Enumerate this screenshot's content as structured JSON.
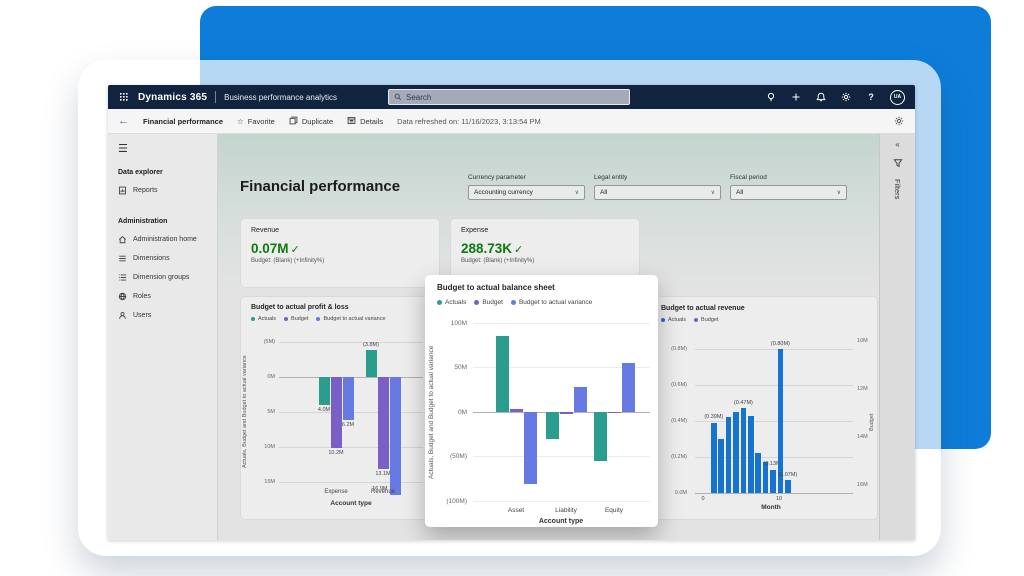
{
  "topbar": {
    "app_name": "Dynamics 365",
    "product_name": "Business performance analytics",
    "search_placeholder": "Search",
    "avatar_initials": "UA",
    "icons": [
      "lightbulb-icon",
      "add-icon",
      "bell-icon",
      "gear-icon",
      "help-icon"
    ]
  },
  "toolbar": {
    "title": "Financial performance",
    "favorite_label": "Favorite",
    "duplicate_label": "Duplicate",
    "details_label": "Details",
    "refreshed_label": "Data refreshed on: 11/16/2023, 3:13:54 PM"
  },
  "sidebar": {
    "sections": [
      {
        "heading": "Data explorer",
        "items": [
          {
            "label": "Reports",
            "icon": "report-icon"
          }
        ]
      },
      {
        "heading": "Administration",
        "items": [
          {
            "label": "Administration home",
            "icon": "home-icon"
          },
          {
            "label": "Dimensions",
            "icon": "dimensions-icon"
          },
          {
            "label": "Dimension groups",
            "icon": "dimension-groups-icon"
          },
          {
            "label": "Roles",
            "icon": "roles-icon"
          },
          {
            "label": "Users",
            "icon": "users-icon"
          }
        ]
      }
    ]
  },
  "page": {
    "title": "Financial performance"
  },
  "filters_bar": {
    "fields": [
      {
        "label": "Currency parameter",
        "value": "Accounting currency"
      },
      {
        "label": "Legal entity",
        "value": "All"
      },
      {
        "label": "Fiscal period",
        "value": "All"
      }
    ]
  },
  "kpis": [
    {
      "title": "Revenue",
      "value": "0.07M",
      "check": "✓",
      "subtitle": "Budget: (Blank) (+Infinity%)"
    },
    {
      "title": "Expense",
      "value": "288.73K",
      "check": "✓",
      "subtitle": "Budget: (Blank) (+Infinity%)"
    }
  ],
  "filters_panel": {
    "label": "Filters",
    "collapse_glyph": "«"
  },
  "colors": {
    "accent_blue_panel": "#0d7dd9",
    "topbar_navy": "#10233f",
    "kpi_green": "#0c7a0c",
    "actuals_teal": "#2a9d8f",
    "budget_purple": "#7a5fc7",
    "variance_periwinkle": "#6779e3",
    "actuals_blue": "#1673d2"
  },
  "chart_data": [
    {
      "id": "pl",
      "type": "bar",
      "title": "Budget to actual profit & loss",
      "categories": [
        "Expense",
        "Revenue"
      ],
      "series": [
        {
          "name": "Actuals",
          "color": "#2a9d8f",
          "values": [
            4.0,
            -3.8
          ],
          "labels": [
            "4.0M",
            "(3.8M)"
          ]
        },
        {
          "name": "Budget",
          "color": "#7a5fc7",
          "values": [
            10.2,
            13.1
          ],
          "labels": [
            "10.2M",
            "13.1M"
          ]
        },
        {
          "name": "Budget to actual variance",
          "color": "#6779e3",
          "values": [
            6.2,
            16.9
          ],
          "labels": [
            "6.2M",
            "16.9M"
          ]
        }
      ],
      "unit": "M",
      "axis_inverted": true,
      "yticks": [
        "(5M)",
        "0M",
        "5M",
        "10M",
        "15M"
      ],
      "xlabel": "Account type",
      "ylabel": "Actuals, Budget and Budget to actual variance",
      "legend_position": "top"
    },
    {
      "id": "bs",
      "type": "bar",
      "title": "Budget to actual balance sheet",
      "categories": [
        "Asset",
        "Liability",
        "Equity"
      ],
      "series": [
        {
          "name": "Actuals",
          "color": "#2a9d8f",
          "values": [
            85,
            -30,
            -54
          ],
          "labels": [
            null,
            null,
            null
          ]
        },
        {
          "name": "Budget",
          "color": "#7a5fc7",
          "values": [
            3,
            -2,
            -1
          ],
          "labels": [
            null,
            null,
            null
          ]
        },
        {
          "name": "Budget to actual variance",
          "color": "#6779e3",
          "values": [
            -80,
            28,
            55
          ],
          "labels": [
            null,
            null,
            null
          ]
        }
      ],
      "unit": "M",
      "ylim": [
        -100,
        100
      ],
      "yticks": [
        "100M",
        "50M",
        "0M",
        "(50M)",
        "(100M)"
      ],
      "xlabel": "Account type",
      "ylabel": "Actuals, Budget and Budget to actual variance",
      "legend_position": "top"
    },
    {
      "id": "rev",
      "type": "bar",
      "title": "Budget to actual revenue",
      "categories": [
        "1",
        "2",
        "3",
        "4",
        "5",
        "6",
        "7",
        "8",
        "9",
        "10",
        "11"
      ],
      "series": [
        {
          "name": "Actuals",
          "color": "#1673d2",
          "values": [
            0.39,
            0.3,
            0.42,
            0.45,
            0.47,
            0.43,
            0.22,
            0.17,
            0.13,
            0.8,
            0.07
          ],
          "labels": [
            "(0.39M)",
            null,
            null,
            null,
            "(0.47M)",
            null,
            null,
            null,
            "(0.13M)",
            "(0.80M)",
            "(0.07M)"
          ]
        },
        {
          "name": "Budget",
          "color": "#7a5fc7",
          "values": []
        }
      ],
      "unit": "M",
      "values_shown_negative": true,
      "left_yticks": [
        "(0.8M)",
        "(0.6M)",
        "(0.4M)",
        "(0.2M)",
        "0.0M"
      ],
      "right_yticks": [
        "10M",
        "12M",
        "14M",
        "16M"
      ],
      "xticks": [
        "0",
        "10"
      ],
      "xlabel": "Month",
      "left_ylabel": "Actuals",
      "right_ylabel": "Budget",
      "legend_position": "top"
    }
  ]
}
